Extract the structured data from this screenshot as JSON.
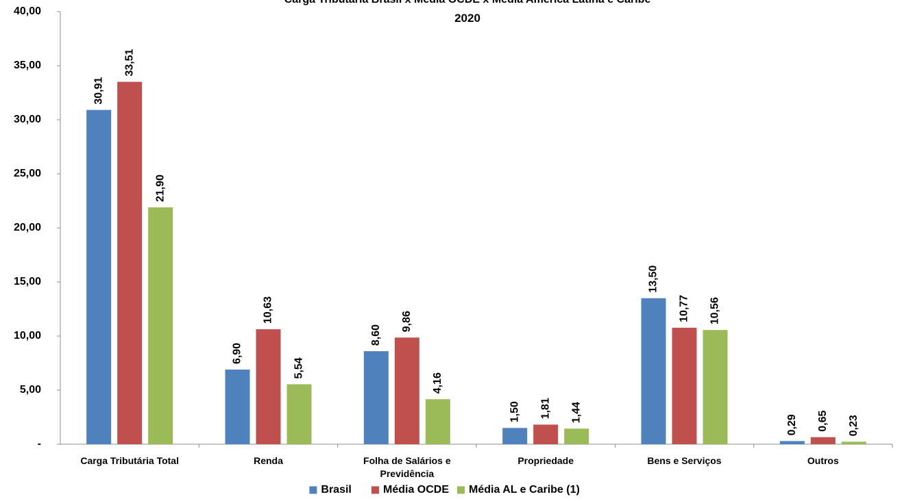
{
  "chart_data": {
    "type": "bar",
    "title": "Carga Tributária Brasil x Média OCDE x Média América Latina e Caribe",
    "subtitle": "2020",
    "xlabel": "",
    "ylabel": "",
    "ylim": [
      0,
      40
    ],
    "yticks": [
      0,
      5,
      10,
      15,
      20,
      25,
      30,
      35,
      40
    ],
    "ytick_labels": [
      "-",
      "5,00",
      "10,00",
      "15,00",
      "20,00",
      "25,00",
      "30,00",
      "35,00",
      "40,00"
    ],
    "grid": false,
    "legend_position": "bottom",
    "categories": [
      "Carga Tributária Total",
      "Renda",
      "Folha de Salários e Previdência",
      "Propriedade",
      "Bens e Serviços",
      "Outros"
    ],
    "category_lines": [
      [
        "Carga Tributária Total"
      ],
      [
        "Renda"
      ],
      [
        "Folha de Salários e",
        "Previdência"
      ],
      [
        "Propriedade"
      ],
      [
        "Bens e Serviços"
      ],
      [
        "Outros"
      ]
    ],
    "series": [
      {
        "name": "Brasil",
        "color": "#4F81BD",
        "values": [
          30.91,
          6.9,
          8.6,
          1.5,
          13.5,
          0.29
        ],
        "labels": [
          "30,91",
          "6,90",
          "8,60",
          "1,50",
          "13,50",
          "0,29"
        ]
      },
      {
        "name": "Média OCDE",
        "color": "#C0504D",
        "values": [
          33.51,
          10.63,
          9.86,
          1.81,
          10.77,
          0.65
        ],
        "labels": [
          "33,51",
          "10,63",
          "9,86",
          "1,81",
          "10,77",
          "0,65"
        ]
      },
      {
        "name": "Média AL e Caribe (1)",
        "color": "#9BBB59",
        "values": [
          21.9,
          5.54,
          4.16,
          1.44,
          10.56,
          0.23
        ],
        "labels": [
          "21,90",
          "5,54",
          "4,16",
          "1,44",
          "10,56",
          "0,23"
        ]
      }
    ]
  }
}
